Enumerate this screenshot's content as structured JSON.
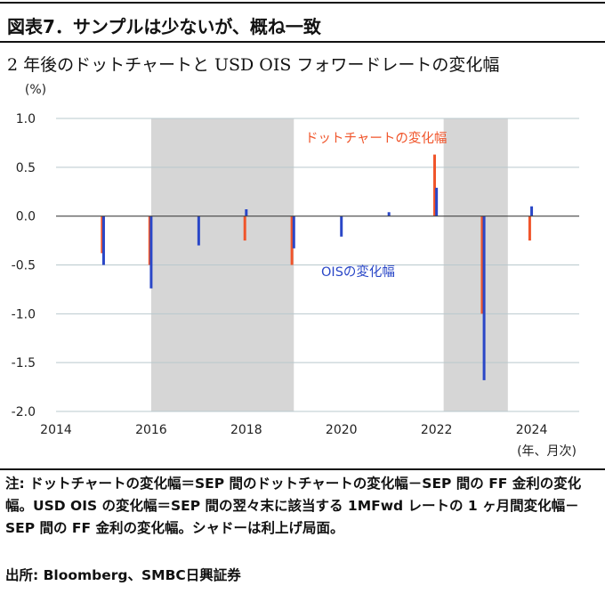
{
  "header": {
    "title": "図表7．サンプルは少ないが、概ね一致",
    "subtitle": "2 年後のドットチャートと USD OIS フォワードレートの変化幅"
  },
  "chart_data": {
    "type": "bar",
    "ylabel": "(%)",
    "xlabel": "(年、月次)",
    "ylim": [
      -2.0,
      1.0
    ],
    "yticks": [
      "1.0",
      "0.5",
      "0.0",
      "-0.5",
      "-1.0",
      "-1.5",
      "-2.0"
    ],
    "ytick_values": [
      1.0,
      0.5,
      0.0,
      -0.5,
      -1.0,
      -1.5,
      -2.0
    ],
    "xlim": [
      2014,
      2025
    ],
    "xticks": [
      "2014",
      "2016",
      "2018",
      "2020",
      "2022",
      "2024"
    ],
    "xtick_values": [
      2014,
      2016,
      2018,
      2020,
      2022,
      2024
    ],
    "grid": true,
    "shaded_periods": [
      [
        2016.0,
        2019.0
      ],
      [
        2022.15,
        2023.5
      ]
    ],
    "series": [
      {
        "name": "ドットチャートの変化幅",
        "color": "#f0552b",
        "points": [
          {
            "x": 2014.97,
            "y": -0.38
          },
          {
            "x": 2015.97,
            "y": -0.5
          },
          {
            "x": 2017.97,
            "y": -0.25
          },
          {
            "x": 2018.96,
            "y": -0.5
          },
          {
            "x": 2021.96,
            "y": 0.63
          },
          {
            "x": 2022.96,
            "y": -1.0
          },
          {
            "x": 2023.96,
            "y": -0.25
          }
        ]
      },
      {
        "name": "OISの変化幅",
        "color": "#2a47c7",
        "points": [
          {
            "x": 2015.0,
            "y": -0.5
          },
          {
            "x": 2016.0,
            "y": -0.74
          },
          {
            "x": 2017.0,
            "y": -0.3
          },
          {
            "x": 2018.0,
            "y": 0.07
          },
          {
            "x": 2019.0,
            "y": -0.33
          },
          {
            "x": 2020.0,
            "y": -0.21
          },
          {
            "x": 2021.0,
            "y": 0.04
          },
          {
            "x": 2022.0,
            "y": 0.29
          },
          {
            "x": 2023.0,
            "y": -1.68
          },
          {
            "x": 2024.0,
            "y": 0.1
          }
        ]
      }
    ],
    "annotations": [
      {
        "text": "ドットチャートの変化幅",
        "color": "#f0552b"
      },
      {
        "text": "OISの変化幅",
        "color": "#2a47c7"
      }
    ]
  },
  "notes": {
    "text": "注: ドットチャートの変化幅＝SEP 間のドットチャートの変化幅－SEP 間の FF 金利の変化幅。USD OIS の変化幅＝SEP 間の翌々末に該当する 1MFwd レートの 1 ヶ月間変化幅－SEP 間の FF 金利の変化幅。シャドーは利上げ局面。",
    "source": "出所: Bloomberg、SMBC日興証券"
  }
}
